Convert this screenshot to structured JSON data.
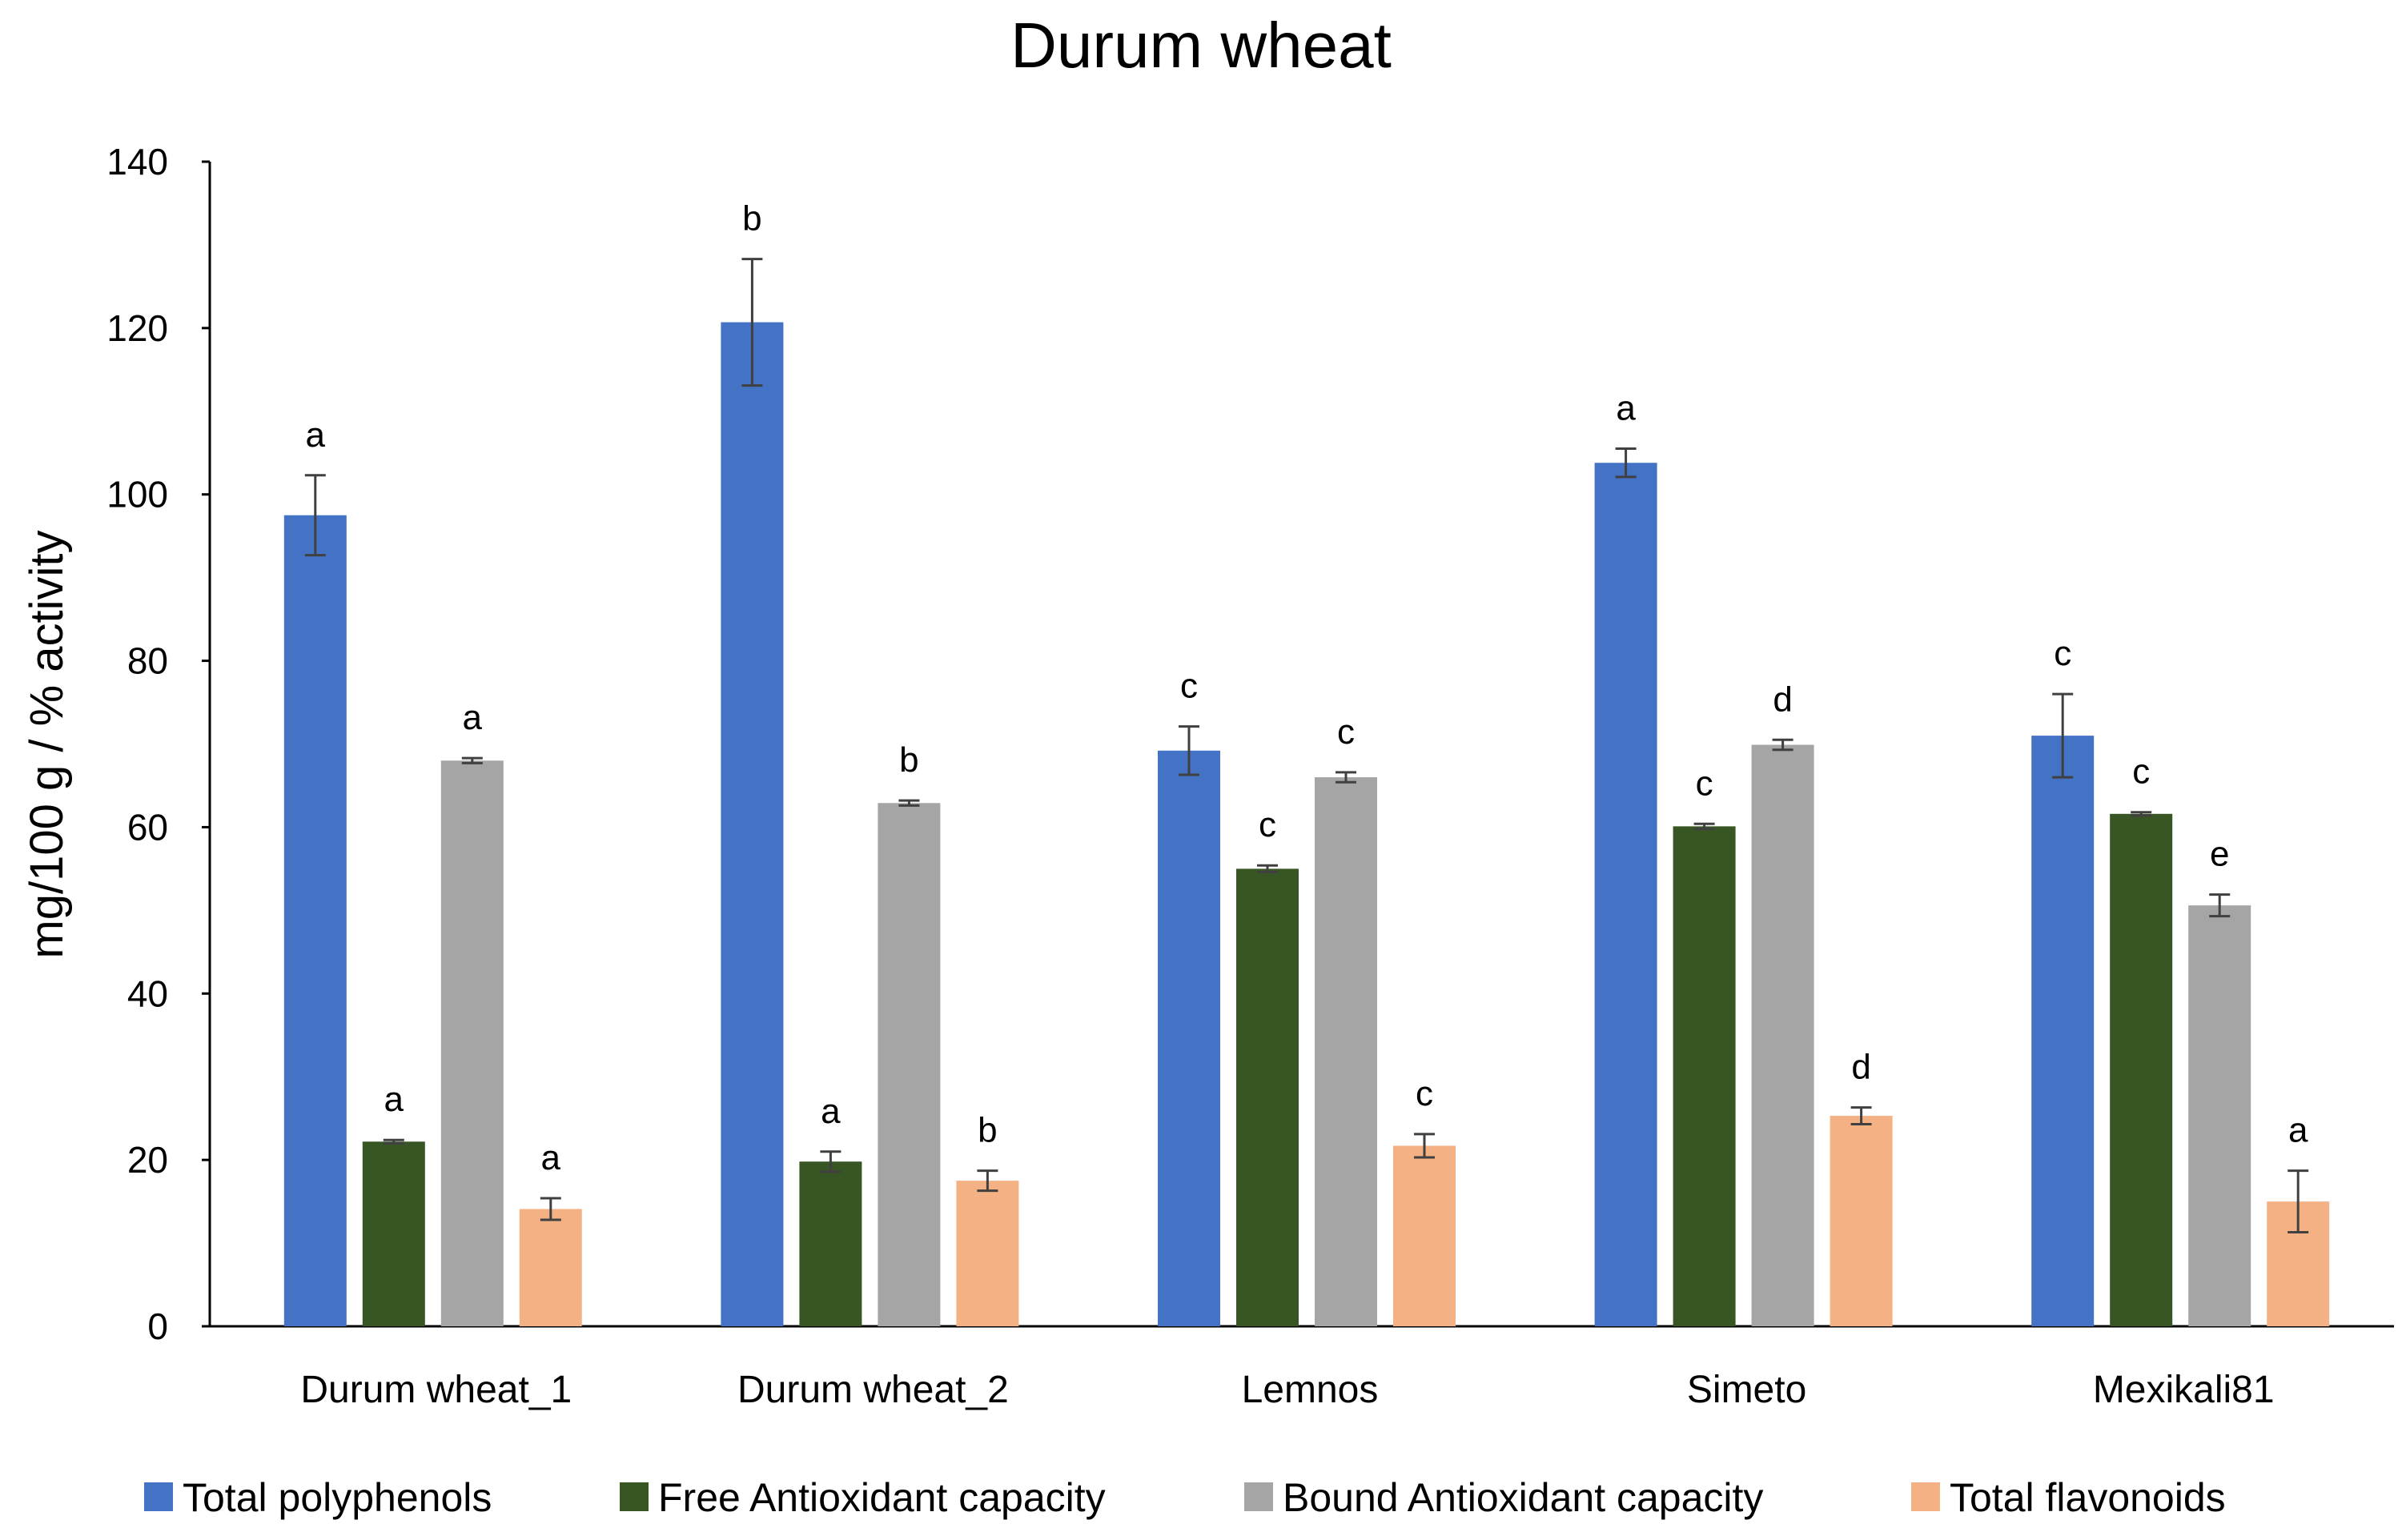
{
  "chart_data": {
    "type": "bar",
    "title": "Durum wheat",
    "xlabel": "",
    "ylabel": "mg/100 g / % activity",
    "ylim": [
      0,
      140
    ],
    "yticks": [
      0,
      20,
      40,
      60,
      80,
      100,
      120,
      140
    ],
    "grid": false,
    "legend_position": "bottom",
    "categories": [
      "Durum wheat_1",
      "Durum wheat_2",
      "Lemnos",
      "Simeto",
      "Mexikali81"
    ],
    "series": [
      {
        "name": "Total polyphenols",
        "color": "#4472C4",
        "values": [
          97.5,
          120.7,
          69.2,
          103.8,
          71.0
        ],
        "errors": [
          4.8,
          7.6,
          2.9,
          1.7,
          5.0
        ],
        "letters": [
          "a",
          "b",
          "c",
          "a",
          "c"
        ]
      },
      {
        "name": "Free Antioxidant capacity",
        "color": "#375623",
        "values": [
          22.2,
          19.8,
          55.0,
          60.1,
          61.6
        ],
        "errors": [
          0.2,
          1.2,
          0.4,
          0.3,
          0.2
        ],
        "letters": [
          "a",
          "a",
          "c",
          "c",
          "c"
        ]
      },
      {
        "name": "Bound Antioxidant capacity",
        "color": "#A5A5A5",
        "values": [
          68.0,
          62.9,
          66.0,
          69.9,
          50.6
        ],
        "errors": [
          0.3,
          0.3,
          0.6,
          0.6,
          1.3
        ],
        "letters": [
          "a",
          "b",
          "c",
          "d",
          "e"
        ]
      },
      {
        "name": "Total flavonoids",
        "color": "#F4B183",
        "values": [
          14.1,
          17.5,
          21.7,
          25.3,
          15.0
        ],
        "errors": [
          1.3,
          1.2,
          1.4,
          1.0,
          3.7
        ],
        "letters": [
          "a",
          "b",
          "c",
          "d",
          "a"
        ]
      }
    ]
  }
}
